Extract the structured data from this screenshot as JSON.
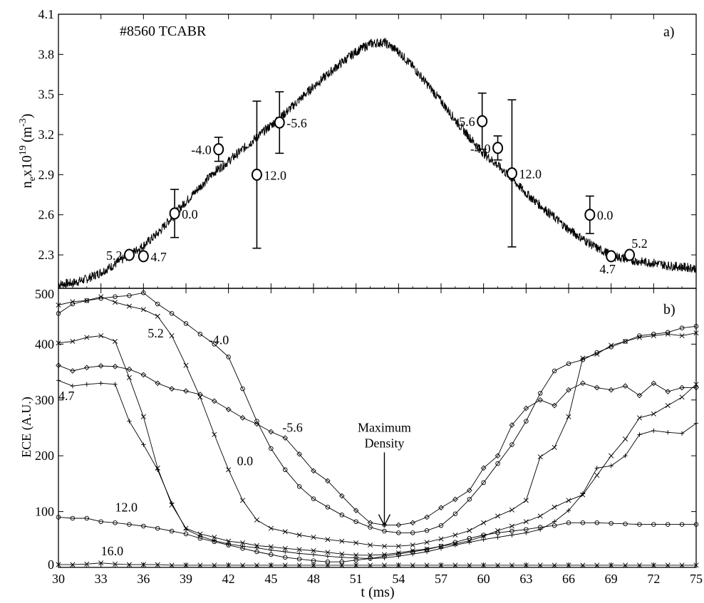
{
  "figure": {
    "shot_label": "#8560 TCABR",
    "xlabel": "t (ms)",
    "annotation": [
      "Maximum",
      "Density"
    ]
  },
  "chart_data": [
    {
      "panel": "a)",
      "type": "line",
      "ylabel": "n",
      "ylabel_sub": "e",
      "ylabel_mid": "x10",
      "ylabel_sup": "19",
      "ylabel_unit": "(m",
      "ylabel_unit_sup": "-3",
      "ylabel_unit_end": ")",
      "xlim": [
        30,
        75
      ],
      "ylim": [
        2.05,
        4.1
      ],
      "xticks": [
        30,
        33,
        36,
        39,
        42,
        45,
        48,
        51,
        54,
        57,
        60,
        63,
        66,
        69,
        72,
        75
      ],
      "yticks": [
        2.3,
        2.6,
        2.9,
        3.2,
        3.5,
        3.8,
        4.1
      ],
      "ytick_labels": [
        "2.3",
        "2.6",
        "2.9",
        "3.2",
        "3.5",
        "3.8",
        "4.1"
      ],
      "density_trace": {
        "x": [
          30,
          31,
          32,
          33,
          34,
          35,
          36,
          37,
          38,
          39,
          40,
          41,
          42,
          43,
          44,
          45,
          46,
          47,
          48,
          49,
          50,
          51,
          52,
          53,
          54,
          55,
          56,
          57,
          58,
          59,
          60,
          61,
          62,
          63,
          64,
          65,
          66,
          67,
          68,
          69,
          70,
          71,
          72,
          73,
          74,
          75
        ],
        "y": [
          2.08,
          2.09,
          2.12,
          2.17,
          2.23,
          2.3,
          2.37,
          2.46,
          2.58,
          2.7,
          2.81,
          2.92,
          3.0,
          3.09,
          3.18,
          3.27,
          3.36,
          3.46,
          3.56,
          3.65,
          3.74,
          3.82,
          3.88,
          3.89,
          3.82,
          3.71,
          3.58,
          3.45,
          3.31,
          3.18,
          3.06,
          2.97,
          2.87,
          2.76,
          2.67,
          2.58,
          2.49,
          2.42,
          2.35,
          2.3,
          2.27,
          2.25,
          2.24,
          2.22,
          2.21,
          2.2
        ]
      },
      "points": [
        {
          "x": 35.0,
          "y": 2.3,
          "err": 0.01,
          "label": "5.2",
          "side": "left"
        },
        {
          "x": 36.0,
          "y": 2.29,
          "err": 0.01,
          "label": "4.7",
          "side": "right"
        },
        {
          "x": 38.2,
          "y": 2.61,
          "err": 0.18,
          "label": "0.0",
          "side": "right"
        },
        {
          "x": 41.3,
          "y": 3.09,
          "err": 0.09,
          "label": "-4.0",
          "side": "left"
        },
        {
          "x": 44.0,
          "y": 2.9,
          "err": 0.55,
          "label": "12.0",
          "side": "right"
        },
        {
          "x": 45.6,
          "y": 3.29,
          "err": 0.23,
          "label": "-5.6",
          "side": "right"
        },
        {
          "x": 59.9,
          "y": 3.3,
          "err": 0.21,
          "label": "-5.6",
          "side": "left"
        },
        {
          "x": 61.0,
          "y": 3.1,
          "err": 0.09,
          "label": "-4.0",
          "side": "left"
        },
        {
          "x": 62.0,
          "y": 2.91,
          "err": 0.55,
          "label": "12.0",
          "side": "right"
        },
        {
          "x": 67.5,
          "y": 2.6,
          "err": 0.14,
          "label": "0.0",
          "side": "right"
        },
        {
          "x": 69.0,
          "y": 2.29,
          "err": 0.01,
          "label": "4.7",
          "side": "below"
        },
        {
          "x": 70.3,
          "y": 2.3,
          "err": 0.01,
          "label": "5.2",
          "side": "above"
        }
      ]
    },
    {
      "panel": "b)",
      "type": "line",
      "ylabel": "ECE (A.U.)",
      "xlim": [
        30,
        75
      ],
      "ylim": [
        0,
        500
      ],
      "xticks": [
        30,
        33,
        36,
        39,
        42,
        45,
        48,
        51,
        54,
        57,
        60,
        63,
        66,
        69,
        72,
        75
      ],
      "yticks": [
        0,
        100,
        200,
        300,
        400,
        500
      ],
      "annotation_x": 53.0,
      "x": [
        30,
        31,
        32,
        33,
        34,
        35,
        36,
        37,
        38,
        39,
        40,
        41,
        42,
        43,
        44,
        45,
        46,
        47,
        48,
        49,
        50,
        51,
        52,
        53,
        54,
        55,
        56,
        57,
        58,
        59,
        60,
        61,
        62,
        63,
        64,
        65,
        66,
        67,
        68,
        69,
        70,
        71,
        72,
        73,
        74,
        75
      ],
      "series": [
        {
          "name": "-4.0",
          "marker": "circle",
          "label_at": [
            40.6,
            400
          ],
          "values": [
            455,
            472,
            478,
            482,
            485,
            487,
            492,
            472,
            455,
            437,
            418,
            400,
            377,
            320,
            262,
            213,
            175,
            145,
            123,
            108,
            94,
            82,
            72,
            65,
            62,
            62,
            66,
            75,
            96,
            122,
            152,
            186,
            220,
            262,
            312,
            352,
            365,
            372,
            385,
            395,
            405,
            415,
            418,
            421,
            429,
            432
          ]
        },
        {
          "name": "-5.6",
          "marker": "diamond",
          "label_at": [
            45.8,
            243
          ],
          "values": [
            362,
            352,
            358,
            361,
            360,
            355,
            345,
            330,
            320,
            316,
            310,
            298,
            283,
            268,
            257,
            243,
            232,
            203,
            173,
            155,
            128,
            102,
            80,
            76,
            76,
            80,
            90,
            107,
            122,
            138,
            178,
            200,
            255,
            285,
            300,
            290,
            318,
            330,
            322,
            318,
            325,
            308,
            330,
            315,
            322,
            322
          ]
        },
        {
          "name": "0.0",
          "marker": "x",
          "label_at": [
            42.6,
            183
          ],
          "values": [
            470,
            476,
            478,
            485,
            475,
            468,
            462,
            450,
            415,
            362,
            305,
            238,
            175,
            120,
            85,
            70,
            64,
            58,
            54,
            50,
            47,
            44,
            40,
            38,
            38,
            40,
            45,
            51,
            58,
            66,
            80,
            92,
            103,
            120,
            198,
            215,
            270,
            375,
            382,
            398,
            405,
            412,
            415,
            418,
            415,
            420
          ]
        },
        {
          "name": "5.2",
          "marker": "x",
          "label_at": [
            36.3,
            412
          ],
          "values": [
            402,
            405,
            412,
            415,
            405,
            340,
            270,
            178,
            112,
            70,
            60,
            54,
            47,
            44,
            39,
            37,
            34,
            32,
            30,
            27,
            24,
            22,
            22,
            23,
            26,
            30,
            33,
            38,
            42,
            48,
            56,
            66,
            74,
            82,
            92,
            108,
            120,
            130,
            165,
            200,
            230,
            268,
            275,
            290,
            305,
            328
          ]
        },
        {
          "name": "4.7",
          "marker": "plus",
          "label_at": [
            30.0,
            300
          ],
          "values": [
            335,
            325,
            328,
            330,
            328,
            262,
            220,
            175,
            115,
            68,
            56,
            48,
            42,
            38,
            35,
            31,
            28,
            25,
            23,
            20,
            18,
            17,
            16,
            17,
            20,
            24,
            28,
            34,
            40,
            45,
            50,
            54,
            58,
            62,
            68,
            82,
            102,
            132,
            178,
            182,
            200,
            238,
            245,
            242,
            240,
            258
          ]
        },
        {
          "name": "12.0",
          "marker": "circle",
          "label_at": [
            34.0,
            100
          ],
          "values": [
            90,
            88,
            88,
            82,
            80,
            77,
            74,
            70,
            65,
            60,
            52,
            46,
            40,
            34,
            28,
            23,
            18,
            15,
            12,
            10,
            10,
            13,
            16,
            20,
            24,
            28,
            32,
            38,
            45,
            52,
            58,
            62,
            65,
            68,
            72,
            75,
            80,
            80,
            80,
            79,
            78,
            77,
            77,
            77,
            77,
            77
          ]
        },
        {
          "name": "16.0",
          "marker": "x",
          "label_at": [
            33.0,
            22
          ],
          "values": [
            5,
            5,
            6,
            8,
            6,
            5,
            5,
            5,
            4,
            4,
            4,
            4,
            4,
            4,
            4,
            4,
            4,
            4,
            4,
            4,
            4,
            4,
            4,
            4,
            4,
            4,
            4,
            4,
            4,
            4,
            4,
            4,
            4,
            4,
            4,
            4,
            4,
            4,
            4,
            4,
            4,
            4,
            4,
            4,
            4,
            4
          ]
        }
      ]
    }
  ]
}
